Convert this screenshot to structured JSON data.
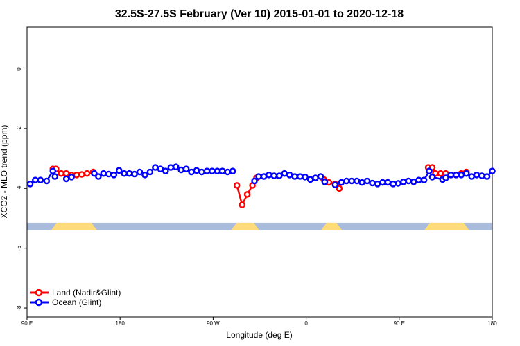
{
  "chart_data": {
    "type": "line",
    "title": "32.5S-27.5S February (Ver 10)   2015-01-01 to 2020-12-18",
    "xlabel": "Longitude (deg E)",
    "ylabel": "XCO2 - MLO trend (ppm)",
    "xlim": [
      0,
      450
    ],
    "ylim": [
      -8.3,
      1.4
    ],
    "x_ticks": [
      {
        "value": 0,
        "label": "90 E"
      },
      {
        "value": 90,
        "label": "180"
      },
      {
        "value": 180,
        "label": "90 W"
      },
      {
        "value": 270,
        "label": "0"
      },
      {
        "value": 360,
        "label": "90 E"
      },
      {
        "value": 450,
        "label": "180"
      }
    ],
    "y_ticks": [
      {
        "value": 0,
        "label": "0"
      },
      {
        "value": -2,
        "label": "-2"
      },
      {
        "value": -4,
        "label": "-4"
      },
      {
        "value": -6,
        "label": "-6"
      },
      {
        "value": -8,
        "label": "-8"
      }
    ],
    "surface_band": {
      "y_top": -5.15,
      "y_bottom": -5.4,
      "ocean_color": "#a9bcdc",
      "land_color": "#ffdc7a",
      "land_segments": [
        [
          26,
          65
        ],
        [
          200,
          222
        ],
        [
          287,
          302
        ],
        [
          387,
          425
        ]
      ]
    },
    "series": [
      {
        "name": "Land (Nadir&Glint)",
        "color": "#ff0000",
        "segments": [
          {
            "x": [
              25,
              28,
              33,
              38
            ],
            "y": [
              -3.35,
              -3.35,
              -3.5,
              -3.5
            ]
          },
          {
            "x": [
              43,
              48,
              53,
              58,
              64
            ],
            "y": [
              -3.55,
              -3.55,
              -3.53,
              -3.5,
              -3.45
            ]
          },
          {
            "x": [
              203,
              208,
              213,
              218,
              222
            ],
            "y": [
              -3.9,
              -4.55,
              -4.2,
              -3.9,
              -3.65
            ]
          },
          {
            "x": [
              287,
              292,
              298
            ],
            "y": [
              -3.7,
              -3.8,
              -3.85
            ]
          },
          {
            "x": [
              300,
              302
            ],
            "y": [
              -3.9,
              -4.0
            ]
          },
          {
            "x": [
              388,
              392,
              395,
              400,
              405
            ],
            "y": [
              -3.3,
              -3.3,
              -3.5,
              -3.5,
              -3.5
            ]
          },
          {
            "x": [
              410,
              415,
              420,
              425
            ],
            "y": [
              -3.55,
              -3.55,
              -3.5,
              -3.45
            ]
          }
        ]
      },
      {
        "name": "Ocean (Glint)",
        "color": "#0000ff",
        "segments": [
          {
            "x": [
              3,
              8,
              13,
              19,
              25,
              27
            ],
            "y": [
              -3.85,
              -3.72,
              -3.72,
              -3.75,
              -3.42,
              -3.6
            ]
          },
          {
            "x": [
              38,
              43
            ],
            "y": [
              -3.68,
              -3.62
            ]
          },
          {
            "x": [
              65,
              69,
              74,
              79,
              84,
              89,
              94,
              99,
              104,
              109,
              114,
              119,
              124,
              129,
              134,
              139,
              144,
              149,
              154,
              159,
              164,
              169,
              174,
              179,
              184,
              189,
              194,
              199
            ],
            "y": [
              -3.5,
              -3.6,
              -3.5,
              -3.52,
              -3.55,
              -3.4,
              -3.5,
              -3.5,
              -3.52,
              -3.45,
              -3.55,
              -3.45,
              -3.3,
              -3.35,
              -3.42,
              -3.3,
              -3.28,
              -3.38,
              -3.35,
              -3.45,
              -3.4,
              -3.45,
              -3.42,
              -3.42,
              -3.42,
              -3.42,
              -3.45,
              -3.42
            ]
          },
          {
            "x": [
              220,
              224,
              229,
              234,
              239,
              244,
              249,
              254,
              259,
              264,
              269,
              274,
              279,
              284,
              288
            ],
            "y": [
              -3.75,
              -3.6,
              -3.6,
              -3.55,
              -3.58,
              -3.58,
              -3.5,
              -3.55,
              -3.6,
              -3.6,
              -3.62,
              -3.7,
              -3.65,
              -3.6,
              -3.78
            ]
          },
          {
            "x": [
              298,
              304,
              309,
              314,
              319,
              324,
              329,
              334,
              339,
              344,
              349,
              354,
              359,
              364,
              369,
              374,
              379,
              384,
              389
            ],
            "y": [
              -3.88,
              -3.8,
              -3.75,
              -3.75,
              -3.75,
              -3.8,
              -3.75,
              -3.82,
              -3.85,
              -3.8,
              -3.8,
              -3.85,
              -3.83,
              -3.78,
              -3.75,
              -3.78,
              -3.72,
              -3.72,
              -3.42
            ]
          },
          {
            "x": [
              392,
              402,
              405,
              410,
              415,
              420,
              425,
              430,
              435,
              440,
              445,
              450
            ],
            "y": [
              -3.62,
              -3.7,
              -3.65,
              -3.55,
              -3.55,
              -3.55,
              -3.5,
              -3.6,
              -3.55,
              -3.58,
              -3.6,
              -3.42
            ]
          }
        ]
      }
    ],
    "legend": {
      "position": "bottom-left",
      "entries": [
        "Land (Nadir&Glint)",
        "Ocean (Glint)"
      ]
    }
  }
}
